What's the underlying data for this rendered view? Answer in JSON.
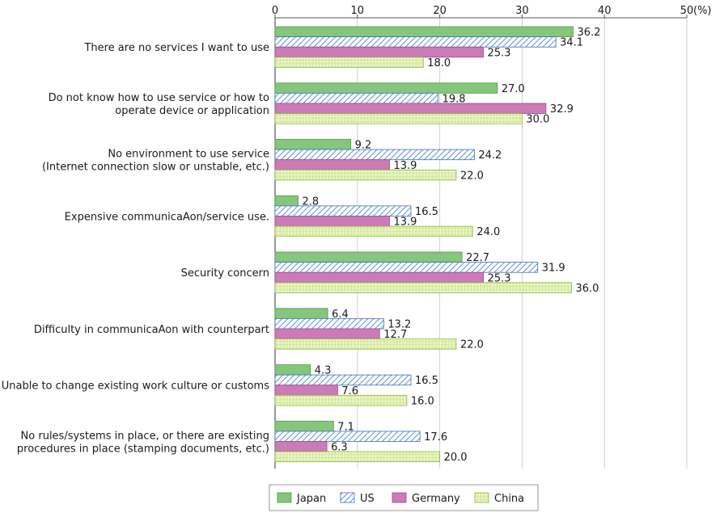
{
  "chart_data": {
    "type": "bar",
    "orientation": "horizontal",
    "unit_label": "(%)",
    "xlim": [
      0,
      50
    ],
    "xticks": [
      0,
      10,
      20,
      30,
      40,
      50
    ],
    "legend_position": "bottom",
    "categories": [
      [
        "There are no services I want to use"
      ],
      [
        "Do not know how to use service or how to",
        "operate device or application"
      ],
      [
        "No environment to use service",
        "(Internet connection slow or unstable, etc.)"
      ],
      [
        "Expensive communicaAon/service use."
      ],
      [
        "Security concern"
      ],
      [
        "Difficulty in communicaAon with counterpart"
      ],
      [
        "Unable to change existing work culture or customs"
      ],
      [
        "No rules/systems in place, or there are existing",
        "procedures in place (stamping documents, etc.)"
      ]
    ],
    "series": [
      {
        "name": "Japan",
        "color": "#86c67c",
        "pattern": "solid",
        "values": [
          36.2,
          27.0,
          9.2,
          2.8,
          22.7,
          6.4,
          4.3,
          7.1
        ]
      },
      {
        "name": "US",
        "color": "#5b8fd6",
        "pattern": "diagonal",
        "values": [
          34.1,
          19.8,
          24.2,
          16.5,
          31.9,
          13.2,
          16.5,
          17.6
        ]
      },
      {
        "name": "Germany",
        "color": "#cc7ab8",
        "pattern": "solid",
        "values": [
          25.3,
          32.9,
          13.9,
          13.9,
          25.3,
          12.7,
          7.6,
          6.3
        ]
      },
      {
        "name": "China",
        "color": "#b8d86a",
        "pattern": "grid",
        "values": [
          18.0,
          30.0,
          22.0,
          24.0,
          36.0,
          22.0,
          16.0,
          20.0
        ]
      }
    ]
  }
}
